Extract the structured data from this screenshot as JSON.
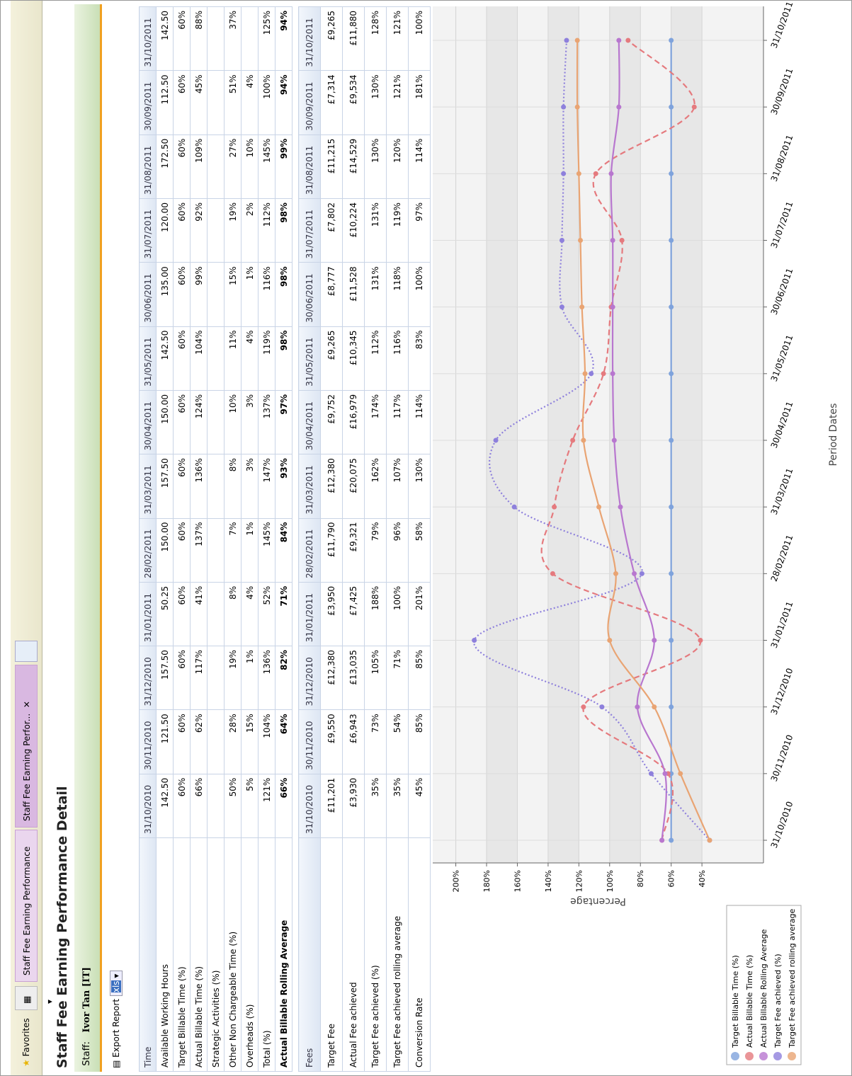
{
  "tabs": {
    "favorites": "Favorites",
    "tab1": "Staff Fee Earning Performance",
    "tab2": "Staff Fee Earning Perfor..."
  },
  "header": {
    "title": "Staff Fee Earning Performance Detail",
    "staff_label": "Staff:",
    "staff_name": "Ivor Tan [IT]",
    "export": "Export Report",
    "format": "xls"
  },
  "time_table": {
    "heading": "Time",
    "columns": [
      "31/10/2010",
      "30/11/2010",
      "31/12/2010",
      "31/01/2011",
      "28/02/2011",
      "31/03/2011",
      "30/04/2011",
      "31/05/2011",
      "30/06/2011",
      "31/07/2011",
      "31/08/2011",
      "30/09/2011",
      "31/10/2011"
    ],
    "rows": [
      {
        "label": "Available Working Hours",
        "cells": [
          "142.50",
          "121.50",
          "157.50",
          "50.25",
          "150.00",
          "157.50",
          "150.00",
          "142.50",
          "135.00",
          "120.00",
          "172.50",
          "112.50",
          "142.50"
        ]
      },
      {
        "label": "Target Billable Time (%)",
        "cells": [
          "60%",
          "60%",
          "60%",
          "60%",
          "60%",
          "60%",
          "60%",
          "60%",
          "60%",
          "60%",
          "60%",
          "60%",
          "60%"
        ]
      },
      {
        "label": "Actual Billable Time (%)",
        "cells": [
          "66%",
          "62%",
          "117%",
          "41%",
          "137%",
          "136%",
          "124%",
          "104%",
          "99%",
          "92%",
          "109%",
          "45%",
          "88%"
        ]
      },
      {
        "label": "Strategic Activities (%)",
        "cells": [
          null,
          null,
          null,
          null,
          null,
          null,
          null,
          null,
          null,
          null,
          null,
          null,
          null
        ]
      },
      {
        "label": "Other Non Chargeable Time (%)",
        "cells": [
          "50%",
          "28%",
          "19%",
          "8%",
          "7%",
          "8%",
          "10%",
          "11%",
          "15%",
          "19%",
          "27%",
          "51%",
          "37%"
        ]
      },
      {
        "label": "Overheads (%)",
        "cells": [
          "5%",
          "15%",
          "1%",
          "4%",
          "1%",
          "3%",
          "3%",
          "4%",
          "1%",
          "2%",
          "10%",
          "4%",
          null
        ]
      },
      {
        "label": "Total (%)",
        "cells": [
          "121%",
          "104%",
          "136%",
          "52%",
          "145%",
          "147%",
          "137%",
          "119%",
          "116%",
          "112%",
          "145%",
          "100%",
          "125%"
        ]
      },
      {
        "label": "Actual Billable Rolling Average",
        "bold": true,
        "cells": [
          "66%",
          "64%",
          "82%",
          "71%",
          "84%",
          "93%",
          "97%",
          "98%",
          "98%",
          "98%",
          "99%",
          "94%",
          "94%"
        ]
      }
    ]
  },
  "fees_table": {
    "heading": "Fees",
    "columns": [
      "31/10/2010",
      "30/11/2010",
      "31/12/2010",
      "31/01/2011",
      "28/02/2011",
      "31/03/2011",
      "30/04/2011",
      "31/05/2011",
      "30/06/2011",
      "31/07/2011",
      "31/08/2011",
      "30/09/2011",
      "31/10/2011"
    ],
    "rows": [
      {
        "label": "Target Fee",
        "cells": [
          "£11,201",
          "£9,550",
          "£12,380",
          "£3,950",
          "£11,790",
          "£12,380",
          "£9,752",
          "£9,265",
          "£8,777",
          "£7,802",
          "£11,215",
          "£7,314",
          "£9,265"
        ]
      },
      {
        "label": "Actual Fee achieved",
        "cells": [
          "£3,930",
          "£6,943",
          "£13,035",
          "£7,425",
          "£9,321",
          "£20,075",
          "£16,979",
          "£10,345",
          "£11,528",
          "£10,224",
          "£14,529",
          "£9,534",
          "£11,880"
        ]
      },
      {
        "label": "Target Fee achieved (%)",
        "cells": [
          "35%",
          "73%",
          "105%",
          "188%",
          "79%",
          "162%",
          "174%",
          "112%",
          "131%",
          "131%",
          "130%",
          "130%",
          "128%"
        ]
      },
      {
        "label": "Target Fee achieved rolling average",
        "cells": [
          "35%",
          "54%",
          "71%",
          "100%",
          "96%",
          "107%",
          "117%",
          "116%",
          "118%",
          "119%",
          "120%",
          "121%",
          "121%"
        ]
      },
      {
        "label": "Conversion Rate",
        "cells": [
          "45%",
          "85%",
          "85%",
          "201%",
          "58%",
          "130%",
          "114%",
          "83%",
          "100%",
          "97%",
          "114%",
          "181%",
          "100%"
        ]
      }
    ]
  },
  "chart_data": {
    "type": "line",
    "xlabel": "Period Dates",
    "ylabel": "Percentage",
    "categories": [
      "31/10/2010",
      "30/11/2010",
      "31/12/2010",
      "31/01/2011",
      "28/02/2011",
      "31/03/2011",
      "30/04/2011",
      "31/05/2011",
      "30/06/2011",
      "31/07/2011",
      "31/08/2011",
      "30/09/2011",
      "31/10/2011"
    ],
    "ylim": [
      0,
      215
    ],
    "yticks": [
      {
        "value": 40,
        "label": "40%"
      },
      {
        "value": 60,
        "label": "60%"
      },
      {
        "value": 80,
        "label": "80%"
      },
      {
        "value": 100,
        "label": "100%"
      },
      {
        "value": 120,
        "label": "120%"
      },
      {
        "value": 140,
        "label": "140%"
      },
      {
        "value": 160,
        "label": "160%"
      },
      {
        "value": 180,
        "label": "180%"
      },
      {
        "value": 200,
        "label": "200%"
      }
    ],
    "grid": true,
    "legend": "bottom-left",
    "series": [
      {
        "name": "Target Billable Time (%)",
        "color": "#7fa3dc",
        "style": "solid",
        "values": [
          60,
          60,
          60,
          60,
          60,
          60,
          60,
          60,
          60,
          60,
          60,
          60,
          60
        ]
      },
      {
        "name": "Actual Billable Time (%)",
        "color": "#e57a7e",
        "style": "dashed",
        "values": [
          66,
          62,
          117,
          41,
          137,
          136,
          124,
          104,
          99,
          92,
          109,
          45,
          88
        ]
      },
      {
        "name": "Actual Billable Rolling Average",
        "color": "#b877cf",
        "style": "solid",
        "values": [
          66,
          64,
          82,
          71,
          84,
          93,
          97,
          98,
          98,
          98,
          99,
          94,
          94
        ]
      },
      {
        "name": "Target Fee achieved (%)",
        "color": "#8e80dc",
        "style": "dotted",
        "values": [
          35,
          73,
          105,
          188,
          79,
          162,
          174,
          112,
          131,
          131,
          130,
          130,
          128
        ]
      },
      {
        "name": "Target Fee achieved rolling average",
        "color": "#e9a473",
        "style": "solid",
        "values": [
          35,
          54,
          71,
          100,
          96,
          107,
          117,
          116,
          118,
          119,
          120,
          121,
          121
        ]
      }
    ]
  }
}
